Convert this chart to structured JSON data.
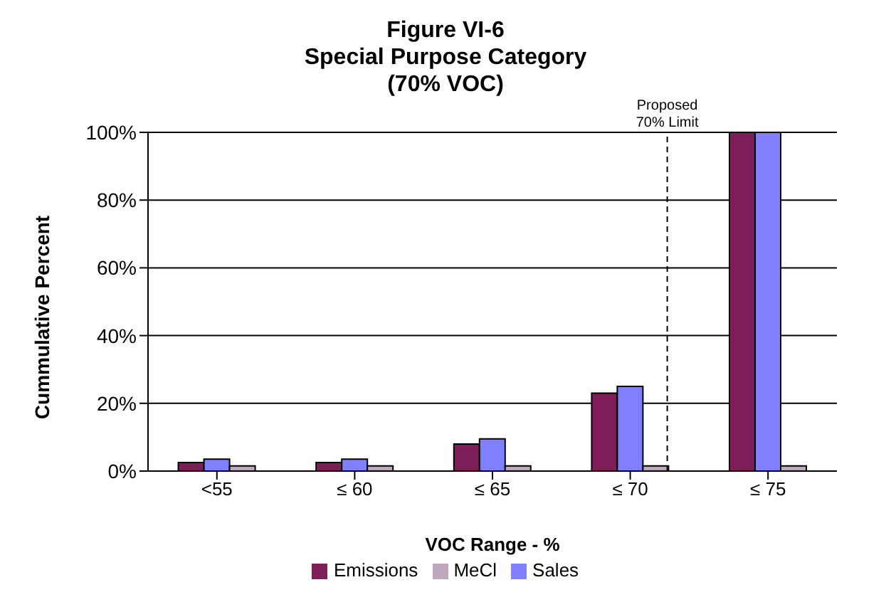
{
  "chart_data": {
    "type": "bar",
    "title": "Figure VI-6\nSpecial Purpose Category\n(70% VOC)",
    "xlabel": "VOC Range - %",
    "ylabel": "Cummulative Percent",
    "categories": [
      "<55",
      "≤ 60",
      "≤ 65",
      "≤ 70",
      "≤ 75"
    ],
    "series": [
      {
        "name": "Emissions",
        "color": "#7f1f5a",
        "values": [
          2.5,
          2.5,
          8,
          23,
          100
        ]
      },
      {
        "name": "Sales",
        "color": "#8080ff",
        "values": [
          3.5,
          3.5,
          9.5,
          25,
          100
        ]
      },
      {
        "name": "MeCl",
        "color": "#c0a8bc",
        "values": [
          1.5,
          1.5,
          1.5,
          1.5,
          1.5
        ]
      }
    ],
    "ylim": [
      0,
      100
    ],
    "yticks": [
      {
        "value": 0,
        "label": "0%"
      },
      {
        "value": 20,
        "label": "20%"
      },
      {
        "value": 40,
        "label": "40%"
      },
      {
        "value": 60,
        "label": "60%"
      },
      {
        "value": 80,
        "label": "80%"
      },
      {
        "value": 100,
        "label": "100%"
      }
    ],
    "grid": "y",
    "legend": "bottom",
    "ref_lines": [
      {
        "axis": "x",
        "value": "≤ 70",
        "label": "Proposed 70% Limit",
        "line_style": "dashed"
      }
    ]
  }
}
